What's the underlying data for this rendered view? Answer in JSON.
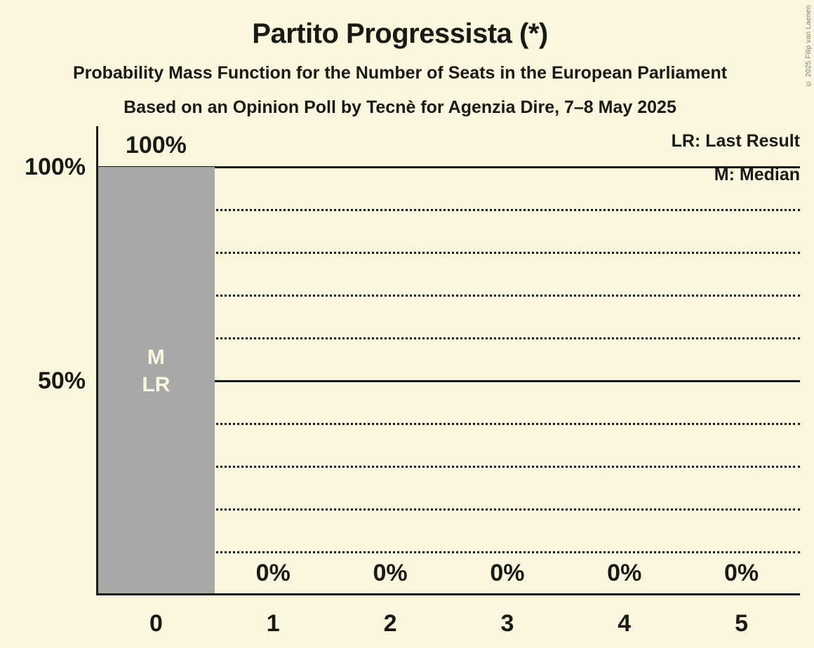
{
  "chart_data": {
    "type": "bar",
    "title": "Partito Progressista (*)",
    "subtitle1": "Probability Mass Function for the Number of Seats in the European Parliament",
    "subtitle2": "Based on an Opinion Poll by Tecnè for Agenzia Dire, 7–8 May 2025",
    "categories": [
      "0",
      "1",
      "2",
      "3",
      "4",
      "5"
    ],
    "values": [
      100,
      0,
      0,
      0,
      0,
      0
    ],
    "value_labels": [
      "100%",
      "0%",
      "0%",
      "0%",
      "0%",
      "0%"
    ],
    "bar_annotations": [
      [
        "M",
        "LR"
      ],
      [],
      [],
      [],
      [],
      []
    ],
    "ylim": [
      0,
      100
    ],
    "ytick_labels": [
      "100%",
      "50%"
    ],
    "ytick_values": [
      100,
      50
    ],
    "gridlines_solid": [
      100,
      50
    ],
    "gridlines_dotted": [
      90,
      80,
      70,
      60,
      40,
      30,
      20,
      10
    ],
    "legend_position": "top-right",
    "legend": [
      {
        "abbr": "LR",
        "label": "LR: Last Result"
      },
      {
        "abbr": "M",
        "label": "M: Median"
      }
    ]
  },
  "colors": {
    "background": "#FBF7DF",
    "bar": "#A8A8A8",
    "text": "#1A1A14",
    "bar_label": "#FBF7DF",
    "copyright": "#7A7A7A"
  },
  "copyright": "© 2025 Filip van Laenen"
}
